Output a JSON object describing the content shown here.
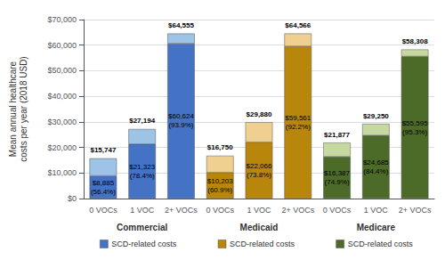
{
  "chart_data": {
    "type": "bar",
    "stacked": true,
    "data_labels": true,
    "grid": true,
    "legend": "bottom",
    "ylabel": "Mean annual healthcare\ncosts per year (2018 USD)",
    "categories": [
      "0 VOCs",
      "1 VOC",
      "2+ VOCs",
      "0 VOCs",
      "1 VOC",
      "2+ VOCs",
      "0 VOCs",
      "1 VOC",
      "2+ VOCs"
    ],
    "groups": [
      "Commercial",
      "Medicaid",
      "Medicare"
    ],
    "ylim": [
      0,
      70000
    ],
    "yticks": [
      {
        "value": 0,
        "label": "$0"
      },
      {
        "value": 10000,
        "label": "$10,000"
      },
      {
        "value": 20000,
        "label": "$20,000"
      },
      {
        "value": 30000,
        "label": "$30,000"
      },
      {
        "value": 40000,
        "label": "$40,000"
      },
      {
        "value": 50000,
        "label": "$50,000"
      },
      {
        "value": 60000,
        "label": "$60,000"
      },
      {
        "value": 70000,
        "label": "$70,000"
      }
    ],
    "series": [
      {
        "name": "SCD-related costs",
        "color": "#4472C4",
        "values": [
          8885,
          21323,
          60624,
          null,
          null,
          null,
          null,
          null,
          null
        ],
        "value_labels": [
          "$8,885\n(56.4%)",
          "$21,323\n(78.4%)",
          "$60,624\n(93.9%)",
          null,
          null,
          null,
          null,
          null,
          null
        ]
      },
      {
        "color": "#9DC3E6",
        "values": [
          6862,
          5871,
          3931,
          null,
          null,
          null,
          null,
          null,
          null
        ]
      },
      {
        "name": "SCD-related costs",
        "color": "#B8860B",
        "values": [
          null,
          null,
          null,
          10203,
          22066,
          59561,
          null,
          null,
          null
        ],
        "value_labels": [
          null,
          null,
          null,
          "$10,203\n(60.9%)",
          "$22,066\n(73.8%)",
          "$59,561\n(92.2%)",
          null,
          null,
          null
        ]
      },
      {
        "color": "#F0D090",
        "values": [
          null,
          null,
          null,
          6547,
          7814,
          5005,
          null,
          null,
          null
        ]
      },
      {
        "name": "SCD-related costs",
        "color": "#4D6B28",
        "values": [
          null,
          null,
          null,
          null,
          null,
          null,
          16387,
          24685,
          55595
        ],
        "value_labels": [
          null,
          null,
          null,
          null,
          null,
          null,
          "$16,387\n(74.9%)",
          "$24,685\n(84.4%)",
          "$55,595\n(95.3%)"
        ]
      },
      {
        "color": "#C6D9A0",
        "values": [
          null,
          null,
          null,
          null,
          null,
          null,
          5490,
          4565,
          2713
        ]
      }
    ],
    "totals": {
      "values": [
        15747,
        27194,
        64555,
        16750,
        29880,
        64566,
        21877,
        29250,
        58308
      ],
      "value_labels": [
        "$15,747",
        "$27,194",
        "$64,555",
        "$16,750",
        "$29,880",
        "$64,566",
        "$21,877",
        "$29,250",
        "$58,308"
      ]
    }
  }
}
